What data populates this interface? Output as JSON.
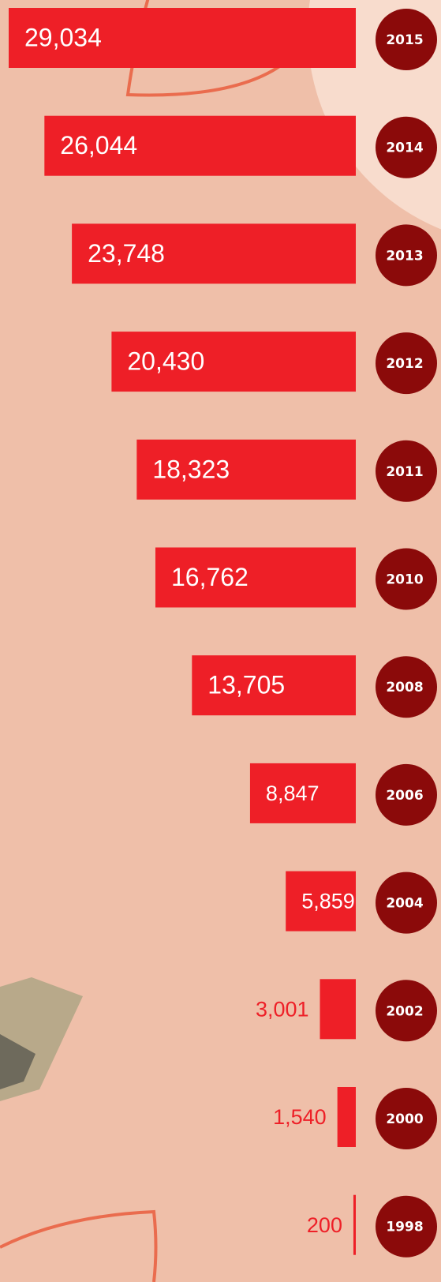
{
  "chart_data": {
    "type": "bar",
    "orientation": "horizontal",
    "categories": [
      "2015",
      "2014",
      "2013",
      "2012",
      "2011",
      "2010",
      "2008",
      "2006",
      "2004",
      "2002",
      "2000",
      "1998"
    ],
    "values": [
      29034,
      26044,
      23748,
      20430,
      18323,
      16762,
      13705,
      8847,
      5859,
      3001,
      1540,
      200
    ],
    "value_labels": [
      "29,034",
      "26,044",
      "23,748",
      "20,430",
      "18,323",
      "16,762",
      "13,705",
      "8,847",
      "5,859",
      "3,001",
      "1,540",
      "200"
    ],
    "color": "#ee1f27",
    "category_color": "#8b0a0a"
  }
}
